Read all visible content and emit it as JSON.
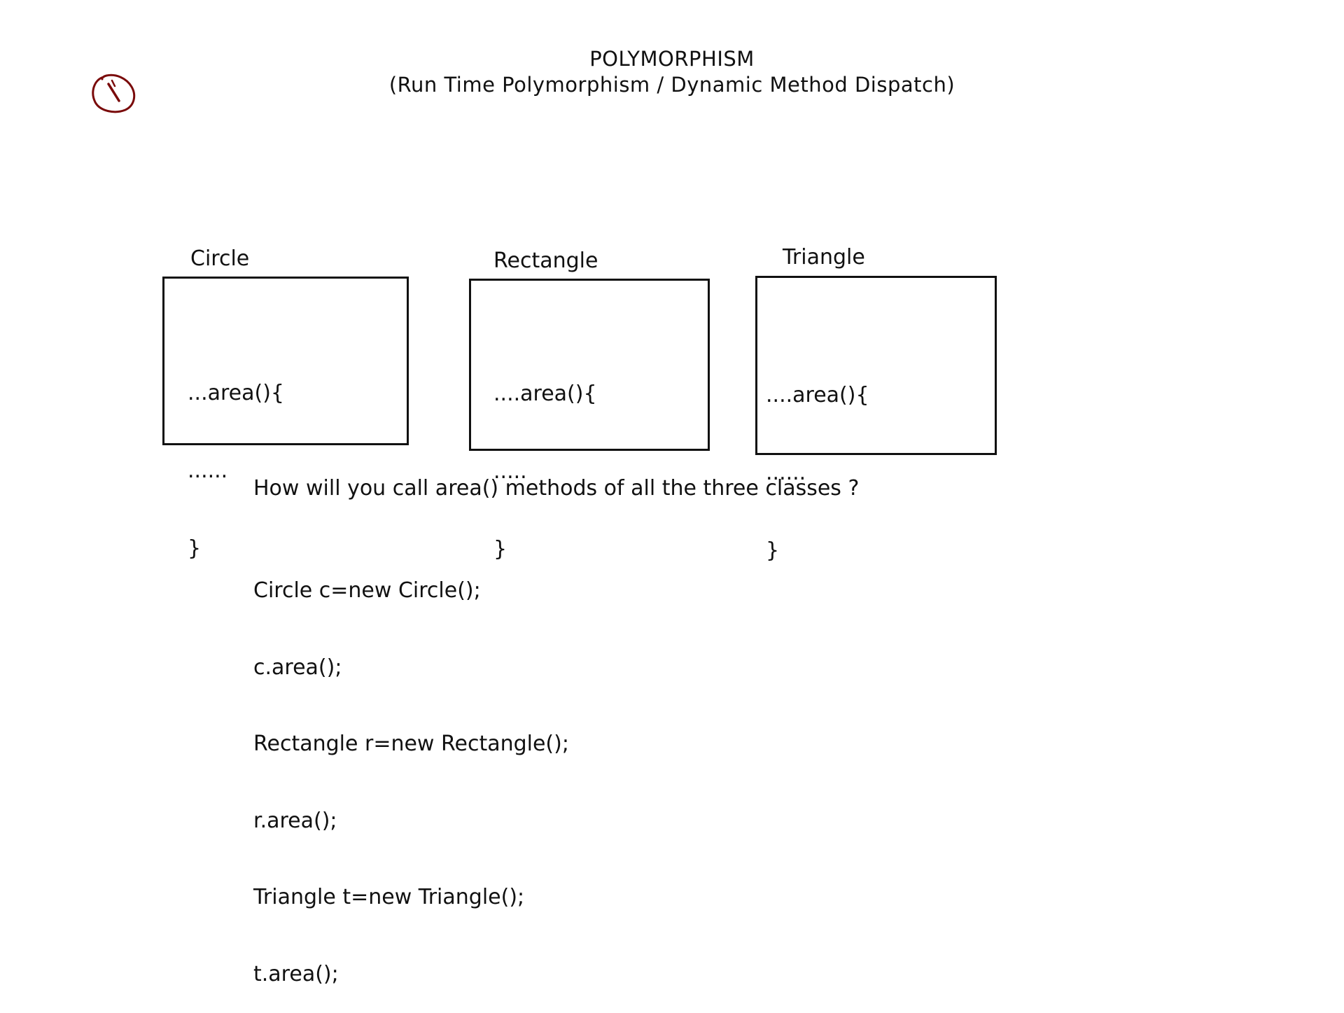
{
  "header": {
    "title": "POLYMORPHISM",
    "subtitle": "(Run Time Polymorphism / Dynamic Method Dispatch)"
  },
  "marker": {
    "icon": "handwritten-circled-slash-icon",
    "color": "#7a0a0a"
  },
  "classes": [
    {
      "name": "Circle",
      "code": [
        "...area(){",
        "......",
        "}"
      ]
    },
    {
      "name": "Rectangle",
      "code": [
        "....area(){",
        ".....",
        "}"
      ]
    },
    {
      "name": "Triangle",
      "code": [
        "....area(){",
        "......",
        "}"
      ]
    }
  ],
  "question": "How will you call area() methods of all the three classes ?",
  "code_lines": [
    "Circle c=new Circle();",
    "c.area();",
    "Rectangle r=new Rectangle();",
    "r.area();",
    "Triangle t=new Triangle();",
    "t.area();"
  ]
}
